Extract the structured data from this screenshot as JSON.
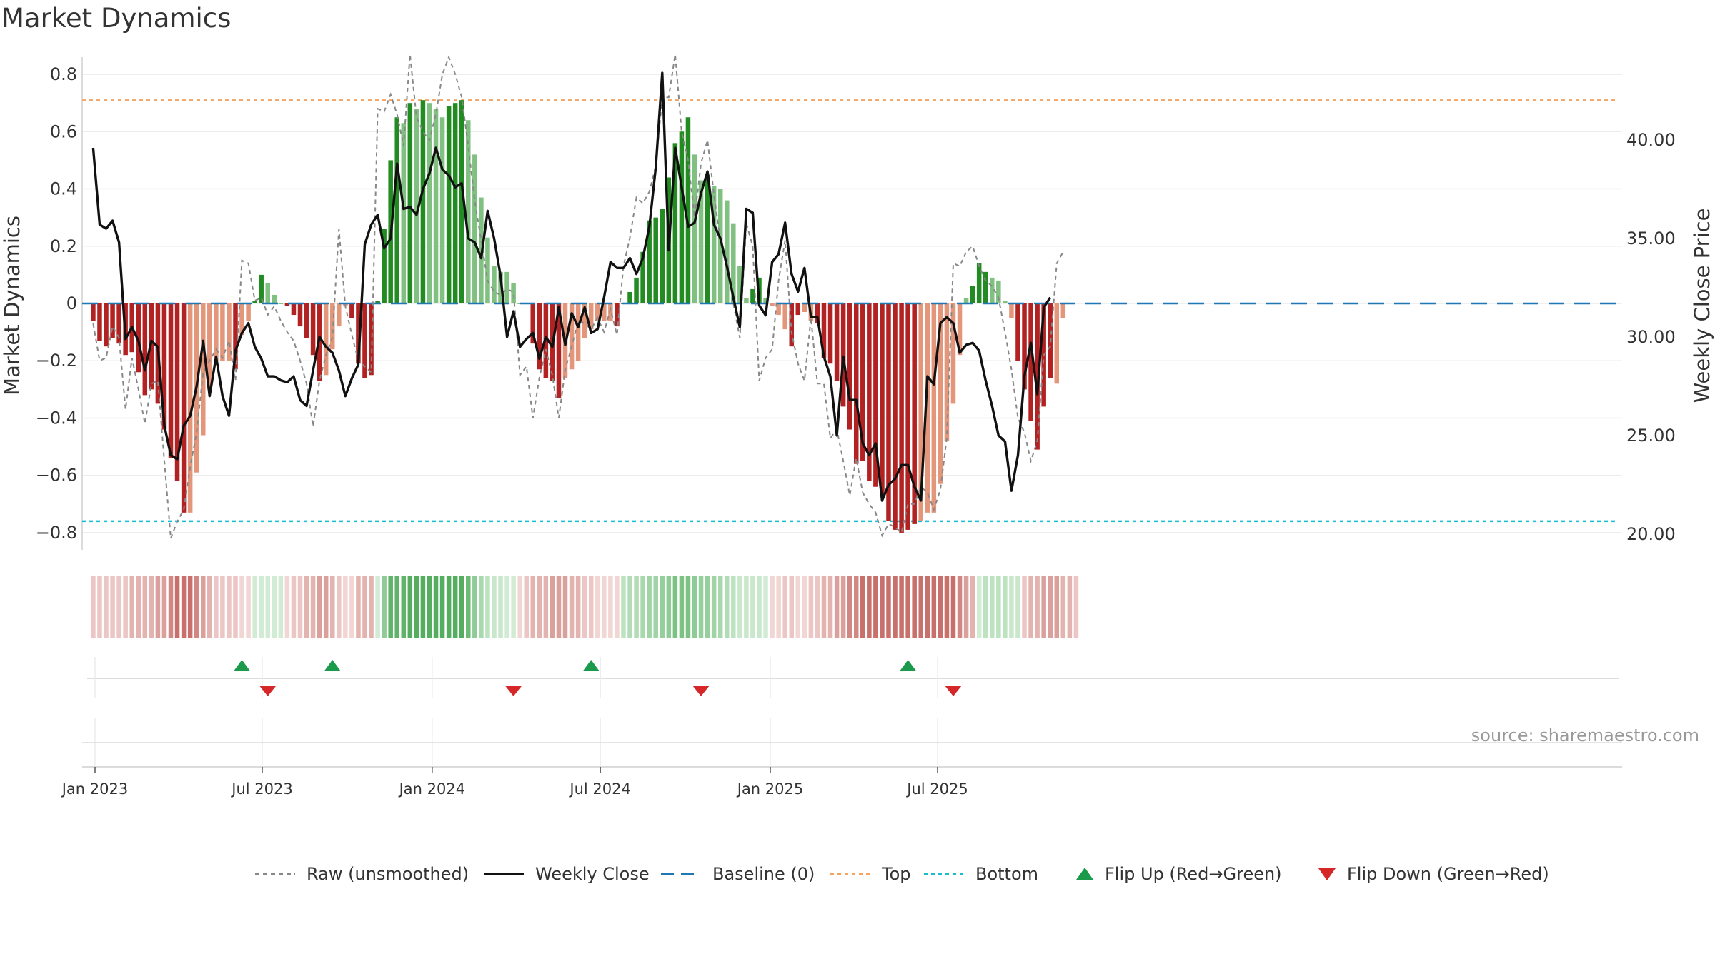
{
  "page": {
    "title": "Market Dynamics",
    "source": "source: sharemaestro.com"
  },
  "chart_data": {
    "type": "bar",
    "title": "Market Dynamics",
    "ylabel_left": "Market Dynamics",
    "ylabel_right": "Weekly Close Price",
    "ylim_left": [
      -0.86,
      0.86
    ],
    "ylim_right": [
      19.2,
      44.2
    ],
    "yticks_left": [
      "0.8",
      "0.6",
      "0.4",
      "0.2",
      "0",
      "−0.2",
      "−0.4",
      "−0.6",
      "−0.8"
    ],
    "yticks_left_values": [
      0.8,
      0.6,
      0.4,
      0.2,
      0,
      -0.2,
      -0.4,
      -0.6,
      -0.8
    ],
    "yticks_right": [
      "40.00",
      "35.00",
      "30.00",
      "25.00",
      "20.00"
    ],
    "yticks_right_values": [
      40,
      35,
      30,
      25,
      20
    ],
    "x_start": "2022-12-30",
    "x_step_days": 7,
    "xticks": [
      {
        "label": "Jan 2023",
        "date": "2023-01-01"
      },
      {
        "label": "Jul 2023",
        "date": "2023-07-01"
      },
      {
        "label": "Jan 2024",
        "date": "2024-01-01"
      },
      {
        "label": "Jul 2024",
        "date": "2024-07-01"
      },
      {
        "label": "Jan 2025",
        "date": "2025-01-01"
      },
      {
        "label": "Jul 2025",
        "date": "2025-07-01"
      }
    ],
    "top_line": 0.71,
    "bottom_line": -0.76,
    "baseline": 0,
    "grid": true,
    "legend_position": "bottom-center",
    "colors": {
      "strong_up": "#228b22",
      "weak_up": "#80c080",
      "strong_down": "#b22222",
      "weak_down": "#e3967a",
      "raw": "#888888",
      "close": "#111111",
      "baseline": "#1f77b4",
      "top": "#f4a460",
      "bottom": "#17becf",
      "flip_up": "#1a9a4a",
      "flip_down": "#d62728"
    },
    "series": [
      {
        "name": "Market Dynamics",
        "values": [
          -0.06,
          -0.13,
          -0.15,
          -0.12,
          -0.14,
          -0.18,
          -0.17,
          -0.24,
          -0.32,
          -0.3,
          -0.35,
          -0.44,
          -0.54,
          -0.62,
          -0.73,
          -0.73,
          -0.59,
          -0.46,
          -0.3,
          -0.2,
          -0.2,
          -0.2,
          -0.23,
          -0.11,
          -0.06,
          0.01,
          0.1,
          0.07,
          0.03,
          0.0,
          -0.01,
          -0.04,
          -0.08,
          -0.12,
          -0.18,
          -0.27,
          -0.25,
          -0.16,
          -0.08,
          -0.01,
          -0.05,
          -0.21,
          -0.26,
          -0.25,
          0.01,
          0.26,
          0.5,
          0.65,
          0.63,
          0.7,
          0.68,
          0.71,
          0.7,
          0.68,
          0.65,
          0.69,
          0.7,
          0.71,
          0.64,
          0.52,
          0.37,
          0.23,
          0.13,
          0.11,
          0.11,
          0.07,
          0.0,
          0.0,
          -0.14,
          -0.23,
          -0.26,
          -0.27,
          -0.33,
          -0.26,
          -0.23,
          -0.2,
          -0.12,
          -0.09,
          -0.06,
          -0.06,
          -0.06,
          -0.08,
          0.0,
          0.04,
          0.09,
          0.18,
          0.29,
          0.3,
          0.33,
          0.44,
          0.56,
          0.6,
          0.65,
          0.52,
          0.43,
          0.45,
          0.41,
          0.4,
          0.36,
          0.28,
          0.13,
          0.02,
          0.05,
          0.09,
          0.02,
          -0.01,
          -0.04,
          -0.09,
          -0.15,
          -0.04,
          -0.03,
          -0.06,
          -0.07,
          -0.19,
          -0.21,
          -0.27,
          -0.36,
          -0.44,
          -0.56,
          -0.55,
          -0.62,
          -0.64,
          -0.67,
          -0.76,
          -0.79,
          -0.8,
          -0.79,
          -0.77,
          -0.76,
          -0.73,
          -0.73,
          -0.63,
          -0.48,
          -0.35,
          -0.18,
          0.02,
          0.06,
          0.14,
          0.11,
          0.09,
          0.08,
          0.01,
          -0.05,
          -0.2,
          -0.3,
          -0.41,
          -0.51,
          -0.36,
          -0.26,
          -0.28,
          -0.05
        ],
        "strength": [
          "s",
          "s",
          "s",
          "s",
          "s",
          "s",
          "s",
          "s",
          "s",
          "s",
          "s",
          "s",
          "s",
          "s",
          "s",
          "w",
          "w",
          "w",
          "w",
          "w",
          "w",
          "w",
          "s",
          "w",
          "w",
          "s",
          "s",
          "w",
          "w",
          "w",
          "s",
          "s",
          "s",
          "s",
          "s",
          "s",
          "w",
          "w",
          "w",
          "w",
          "s",
          "s",
          "s",
          "s",
          "s",
          "s",
          "s",
          "s",
          "w",
          "s",
          "w",
          "s",
          "w",
          "w",
          "w",
          "s",
          "s",
          "s",
          "w",
          "w",
          "w",
          "w",
          "w",
          "w",
          "w",
          "w",
          "w",
          "s",
          "s",
          "s",
          "s",
          "s",
          "s",
          "w",
          "w",
          "w",
          "w",
          "w",
          "w",
          "w",
          "w",
          "s",
          "s",
          "s",
          "s",
          "s",
          "s",
          "s",
          "s",
          "s",
          "s",
          "s",
          "s",
          "w",
          "w",
          "s",
          "w",
          "w",
          "w",
          "w",
          "w",
          "w",
          "s",
          "s",
          "w",
          "w",
          "w",
          "w",
          "s",
          "s",
          "w",
          "w",
          "s",
          "s",
          "s",
          "s",
          "s",
          "s",
          "s",
          "s",
          "s",
          "s",
          "s",
          "s",
          "s",
          "s",
          "s",
          "s",
          "w",
          "w",
          "w",
          "w",
          "w",
          "w",
          "w",
          "w",
          "s",
          "s",
          "s",
          "w",
          "w",
          "w",
          "w",
          "s",
          "s",
          "s",
          "s",
          "s",
          "s",
          "w",
          "w",
          "w"
        ]
      },
      {
        "name": "Raw (unsmoothed)",
        "values": [
          -0.07,
          -0.2,
          -0.19,
          -0.08,
          -0.12,
          -0.37,
          -0.19,
          -0.3,
          -0.42,
          -0.28,
          -0.27,
          -0.55,
          -0.82,
          -0.76,
          -0.72,
          -0.57,
          -0.45,
          -0.24,
          -0.2,
          -0.16,
          -0.19,
          -0.13,
          -0.27,
          0.15,
          0.14,
          0.01,
          0.02,
          -0.04,
          -0.01,
          -0.06,
          -0.1,
          -0.13,
          -0.2,
          -0.28,
          -0.43,
          -0.27,
          -0.18,
          -0.12,
          0.26,
          -0.01,
          -0.11,
          -0.2,
          -0.22,
          -0.24,
          0.68,
          0.67,
          0.73,
          0.66,
          0.55,
          0.87,
          0.65,
          0.6,
          0.57,
          0.66,
          0.8,
          0.86,
          0.8,
          0.72,
          0.55,
          0.36,
          0.22,
          0.08,
          0.04,
          0.03,
          0.05,
          0.04,
          -0.25,
          -0.22,
          -0.4,
          -0.26,
          -0.16,
          -0.25,
          -0.4,
          -0.23,
          -0.15,
          -0.06,
          -0.07,
          -0.09,
          -0.05,
          -0.1,
          -0.02,
          -0.11,
          0.13,
          0.23,
          0.37,
          0.35,
          0.39,
          0.48,
          0.72,
          0.72,
          0.87,
          0.6,
          0.5,
          0.3,
          0.49,
          0.57,
          0.38,
          0.22,
          0.16,
          0.0,
          -0.12,
          0.28,
          0.2,
          -0.27,
          -0.19,
          -0.16,
          0.08,
          0.22,
          -0.1,
          -0.21,
          -0.27,
          -0.05,
          -0.28,
          -0.28,
          -0.47,
          -0.44,
          -0.55,
          -0.67,
          -0.54,
          -0.66,
          -0.7,
          -0.73,
          -0.81,
          -0.77,
          -0.78,
          -0.8,
          -0.7,
          -0.7,
          -0.64,
          -0.66,
          -0.72,
          -0.65,
          -0.47,
          0.14,
          0.13,
          0.18,
          0.2,
          0.13,
          0.08,
          0.06,
          0.02,
          -0.1,
          -0.23,
          -0.4,
          -0.45,
          -0.55,
          -0.48,
          -0.18,
          -0.15,
          0.14,
          0.18
        ]
      },
      {
        "name": "Weekly Close",
        "values": [
          39.6,
          35.7,
          35.5,
          35.9,
          34.8,
          29.9,
          30.5,
          29.8,
          28.3,
          29.8,
          29.5,
          25.5,
          24.0,
          23.8,
          25.5,
          26.0,
          27.5,
          29.8,
          27.0,
          29.0,
          27.0,
          26.0,
          29.3,
          30.2,
          30.7,
          29.5,
          28.9,
          28.0,
          28.0,
          27.8,
          27.7,
          28.0,
          26.8,
          26.5,
          28.3,
          30.0,
          29.5,
          29.2,
          28.3,
          27.0,
          27.9,
          28.6,
          34.7,
          35.7,
          36.2,
          34.5,
          35.0,
          38.8,
          36.5,
          36.6,
          36.2,
          37.5,
          38.3,
          39.6,
          38.5,
          38.2,
          37.6,
          37.8,
          35.0,
          34.8,
          34.0,
          36.4,
          35.0,
          33.1,
          30.0,
          31.3,
          29.5,
          29.9,
          30.2,
          28.9,
          30.0,
          29.5,
          31.5,
          29.6,
          31.2,
          30.5,
          31.5,
          30.2,
          30.4,
          32.0,
          33.8,
          33.5,
          33.5,
          34.0,
          33.2,
          34.0,
          35.6,
          38.6,
          43.4,
          34.4,
          39.6,
          37.6,
          35.6,
          35.8,
          37.3,
          38.4,
          35.7,
          35.0,
          33.6,
          32.0,
          30.5,
          36.5,
          36.3,
          31.6,
          31.1,
          33.8,
          34.2,
          35.8,
          33.2,
          32.3,
          33.5,
          31.0,
          31.0,
          29.0,
          28.0,
          25.0,
          29.0,
          26.8,
          26.8,
          24.6,
          24.0,
          24.6,
          21.7,
          22.5,
          22.8,
          23.5,
          23.5,
          22.4,
          21.7,
          28.0,
          27.6,
          30.7,
          31.0,
          30.7,
          29.2,
          29.6,
          29.7,
          29.3,
          27.8,
          26.5,
          25.0,
          24.7,
          22.2,
          24.0,
          28.0,
          29.7,
          27.1,
          31.5,
          32.0
        ]
      }
    ],
    "strip_colors": [
      "#ebc6c4",
      "#ebc6c4",
      "#ebc6c4",
      "#ebc6c4",
      "#ebc6c4",
      "#ebc6c4",
      "#e3b3b0",
      "#e3b3b0",
      "#e3b3b0",
      "#e3b3b0",
      "#daa09c",
      "#daa09c",
      "#d18884",
      "#c8716c",
      "#c8716c",
      "#c8716c",
      "#d18884",
      "#daa09c",
      "#e3b3b0",
      "#ebc6c4",
      "#ebc6c4",
      "#ebc6c4",
      "#ebc6c4",
      "#f1d6d4",
      "#f1d6d4",
      "#d2ebd4",
      "#d2ebd4",
      "#d2ebd4",
      "#d2ebd4",
      "#d2ebd4",
      "#f1d6d4",
      "#ebc6c4",
      "#ebc6c4",
      "#e3b3b0",
      "#e3b3b0",
      "#daa09c",
      "#daa09c",
      "#e3b3b0",
      "#ebc6c4",
      "#f1d6d4",
      "#f1d6d4",
      "#e3b3b0",
      "#e3b3b0",
      "#e3b3b0",
      "#d2ebd4",
      "#8fcb96",
      "#5fb46a",
      "#5fb46a",
      "#5fb46a",
      "#55ad60",
      "#55ad60",
      "#55ad60",
      "#55ad60",
      "#55ad60",
      "#55ad60",
      "#55ad60",
      "#55ad60",
      "#55ad60",
      "#6abb74",
      "#8fcb96",
      "#a8d8ad",
      "#bde2c0",
      "#c8e7cb",
      "#c8e7cb",
      "#d2ebd4",
      "#d2ebd4",
      "#f1d6d4",
      "#ebc6c4",
      "#e3b3b0",
      "#e3b3b0",
      "#e3b3b0",
      "#daa09c",
      "#daa09c",
      "#daa09c",
      "#e3b3b0",
      "#e3b3b0",
      "#ebc6c4",
      "#ebc6c4",
      "#f1d6d4",
      "#f1d6d4",
      "#f1d6d4",
      "#f1d6d4",
      "#bde2c0",
      "#b1dcb5",
      "#b1dcb5",
      "#a8d8ad",
      "#a0d4a5",
      "#a0d4a5",
      "#95cf9b",
      "#8fcb96",
      "#7cc283",
      "#7cc283",
      "#7cc283",
      "#8fcb96",
      "#95cf9b",
      "#95cf9b",
      "#a0d4a5",
      "#a8d8ad",
      "#b1dcb5",
      "#bde2c0",
      "#c8e7cb",
      "#c8e7cb",
      "#c8e7cb",
      "#c8e7cb",
      "#d2ebd4",
      "#f1d6d4",
      "#f1d6d4",
      "#ebc6c4",
      "#ebc6c4",
      "#f1d6d4",
      "#f1d6d4",
      "#ebc6c4",
      "#ebc6c4",
      "#e3b3b0",
      "#e3b3b0",
      "#daa09c",
      "#daa09c",
      "#d18884",
      "#d18884",
      "#c8716c",
      "#c8716c",
      "#c8716c",
      "#c8716c",
      "#c8716c",
      "#c8716c",
      "#c8716c",
      "#c8716c",
      "#c8716c",
      "#c8716c",
      "#c8716c",
      "#c8716c",
      "#c8716c",
      "#c8716c",
      "#c8716c",
      "#d18884",
      "#daa09c",
      "#e3b3b0",
      "#d2ebd4",
      "#bde2c0",
      "#bde2c0",
      "#bde2c0",
      "#bde2c0",
      "#c8e7cb",
      "#c8e7cb",
      "#ebc6c4",
      "#e3b3b0",
      "#e3b3b0",
      "#daa09c",
      "#daa09c",
      "#daa09c",
      "#e3b3b0",
      "#e3b3b0",
      "#ebc6c4"
    ],
    "flips_up": [
      "2023-06-09",
      "2023-09-15",
      "2024-06-21",
      "2025-05-30"
    ],
    "flips_down": [
      "2023-07-07",
      "2024-03-29",
      "2024-10-18",
      "2025-07-18"
    ],
    "legend": [
      {
        "label": "Raw (unsmoothed)",
        "style": "dashed-gray"
      },
      {
        "label": "Weekly Close",
        "style": "solid-black"
      },
      {
        "label": "Baseline (0)",
        "style": "dashed-blue"
      },
      {
        "label": "Top",
        "style": "dotted-orange"
      },
      {
        "label": "Bottom",
        "style": "dotted-cyan"
      },
      {
        "label": "Flip Up (Red→Green)",
        "style": "triangle-up-green"
      },
      {
        "label": "Flip Down (Green→Red)",
        "style": "triangle-down-red"
      }
    ]
  }
}
